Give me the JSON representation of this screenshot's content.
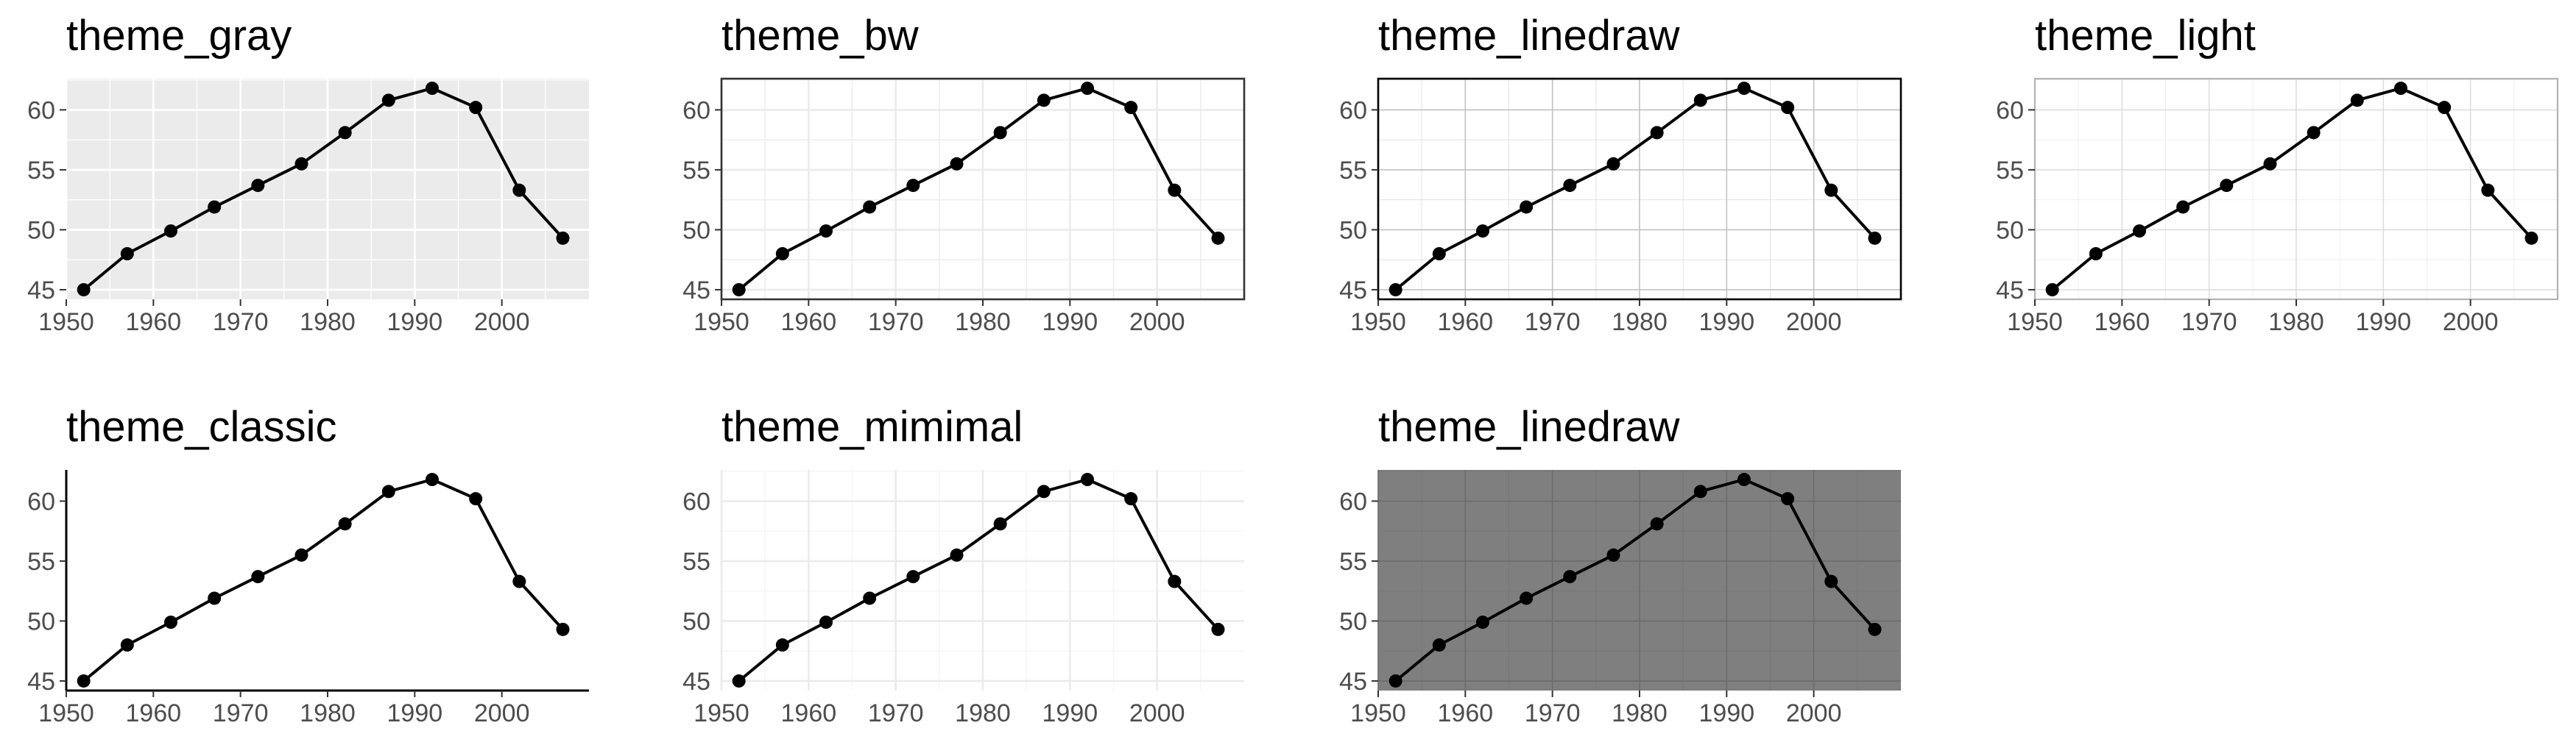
{
  "chart_data": [
    {
      "type": "line",
      "title": "theme_gray",
      "theme": "gray",
      "x": [
        1952,
        1957,
        1962,
        1967,
        1972,
        1977,
        1982,
        1987,
        1992,
        1997,
        2002,
        2007
      ],
      "y": [
        45.0,
        48.0,
        49.9,
        51.9,
        53.7,
        55.5,
        58.1,
        60.8,
        61.8,
        60.2,
        53.3,
        49.3
      ],
      "xlim": [
        1950,
        2010
      ],
      "ylim": [
        44.2,
        62.6
      ],
      "xticks": [
        1950,
        1960,
        1970,
        1980,
        1990,
        2000
      ],
      "yticks": [
        45,
        50,
        55,
        60
      ],
      "xlabel": "",
      "ylabel": "",
      "grid": true
    },
    {
      "type": "line",
      "title": "theme_bw",
      "theme": "bw",
      "x": [
        1952,
        1957,
        1962,
        1967,
        1972,
        1977,
        1982,
        1987,
        1992,
        1997,
        2002,
        2007
      ],
      "y": [
        45.0,
        48.0,
        49.9,
        51.9,
        53.7,
        55.5,
        58.1,
        60.8,
        61.8,
        60.2,
        53.3,
        49.3
      ],
      "xlim": [
        1950,
        2010
      ],
      "ylim": [
        44.2,
        62.6
      ],
      "xticks": [
        1950,
        1960,
        1970,
        1980,
        1990,
        2000
      ],
      "yticks": [
        45,
        50,
        55,
        60
      ],
      "xlabel": "",
      "ylabel": "",
      "grid": true
    },
    {
      "type": "line",
      "title": "theme_linedraw",
      "theme": "linedraw",
      "x": [
        1952,
        1957,
        1962,
        1967,
        1972,
        1977,
        1982,
        1987,
        1992,
        1997,
        2002,
        2007
      ],
      "y": [
        45.0,
        48.0,
        49.9,
        51.9,
        53.7,
        55.5,
        58.1,
        60.8,
        61.8,
        60.2,
        53.3,
        49.3
      ],
      "xlim": [
        1950,
        2010
      ],
      "ylim": [
        44.2,
        62.6
      ],
      "xticks": [
        1950,
        1960,
        1970,
        1980,
        1990,
        2000
      ],
      "yticks": [
        45,
        50,
        55,
        60
      ],
      "xlabel": "",
      "ylabel": "",
      "grid": true
    },
    {
      "type": "line",
      "title": "theme_light",
      "theme": "light",
      "x": [
        1952,
        1957,
        1962,
        1967,
        1972,
        1977,
        1982,
        1987,
        1992,
        1997,
        2002,
        2007
      ],
      "y": [
        45.0,
        48.0,
        49.9,
        51.9,
        53.7,
        55.5,
        58.1,
        60.8,
        61.8,
        60.2,
        53.3,
        49.3
      ],
      "xlim": [
        1950,
        2010
      ],
      "ylim": [
        44.2,
        62.6
      ],
      "xticks": [
        1950,
        1960,
        1970,
        1980,
        1990,
        2000
      ],
      "yticks": [
        45,
        50,
        55,
        60
      ],
      "xlabel": "",
      "ylabel": "",
      "grid": true
    },
    {
      "type": "line",
      "title": "theme_classic",
      "theme": "classic",
      "x": [
        1952,
        1957,
        1962,
        1967,
        1972,
        1977,
        1982,
        1987,
        1992,
        1997,
        2002,
        2007
      ],
      "y": [
        45.0,
        48.0,
        49.9,
        51.9,
        53.7,
        55.5,
        58.1,
        60.8,
        61.8,
        60.2,
        53.3,
        49.3
      ],
      "xlim": [
        1950,
        2010
      ],
      "ylim": [
        44.2,
        62.6
      ],
      "xticks": [
        1950,
        1960,
        1970,
        1980,
        1990,
        2000
      ],
      "yticks": [
        45,
        50,
        55,
        60
      ],
      "xlabel": "",
      "ylabel": "",
      "grid": false
    },
    {
      "type": "line",
      "title": "theme_mimimal",
      "theme": "minimal",
      "x": [
        1952,
        1957,
        1962,
        1967,
        1972,
        1977,
        1982,
        1987,
        1992,
        1997,
        2002,
        2007
      ],
      "y": [
        45.0,
        48.0,
        49.9,
        51.9,
        53.7,
        55.5,
        58.1,
        60.8,
        61.8,
        60.2,
        53.3,
        49.3
      ],
      "xlim": [
        1950,
        2010
      ],
      "ylim": [
        44.2,
        62.6
      ],
      "xticks": [
        1950,
        1960,
        1970,
        1980,
        1990,
        2000
      ],
      "yticks": [
        45,
        50,
        55,
        60
      ],
      "xlabel": "",
      "ylabel": "",
      "grid": true
    },
    {
      "type": "line",
      "title": "theme_linedraw",
      "theme": "linedraw-dark",
      "x": [
        1952,
        1957,
        1962,
        1967,
        1972,
        1977,
        1982,
        1987,
        1992,
        1997,
        2002,
        2007
      ],
      "y": [
        45.0,
        48.0,
        49.9,
        51.9,
        53.7,
        55.5,
        58.1,
        60.8,
        61.8,
        60.2,
        53.3,
        49.3
      ],
      "xlim": [
        1950,
        2010
      ],
      "ylim": [
        44.2,
        62.6
      ],
      "xticks": [
        1950,
        1960,
        1970,
        1980,
        1990,
        2000
      ],
      "yticks": [
        45,
        50,
        55,
        60
      ],
      "xlabel": "",
      "ylabel": "",
      "grid": true
    }
  ],
  "colors": {
    "line": "#000000",
    "tick_text": "#4d4d4d",
    "gray_panel_bg": "#ebebeb",
    "dark_panel_bg": "#7f7f7f",
    "grid_light": "#ebebeb"
  }
}
